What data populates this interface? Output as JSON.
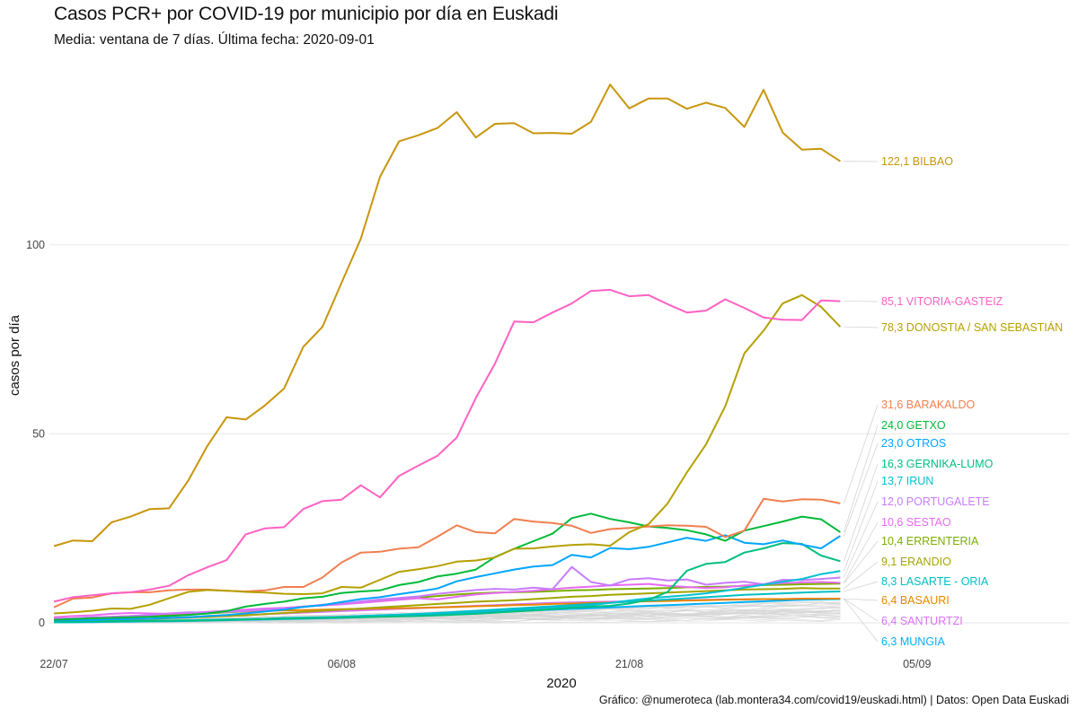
{
  "chart_data": {
    "type": "line",
    "title": "Casos PCR+ por COVID-19 por municipio por día en Euskadi",
    "subtitle": "Media: ventana de 7 días. Última fecha: 2020-09-01",
    "xlabel": "2020",
    "ylabel": "casos por día",
    "caption": "Gráfico: @numeroteca (lab.montera34.com/covid19/euskadi.html) | Datos: Open Data Euskadi",
    "x_ticks": [
      "22/07",
      "06/08",
      "21/08",
      "05/09"
    ],
    "y_ticks": [
      0,
      50,
      100
    ],
    "ylim": [
      -3,
      146
    ],
    "xlim": [
      0,
      53
    ],
    "grid": "horizontal",
    "legend": "direct labels at right",
    "x": [
      0,
      1,
      2,
      3,
      4,
      5,
      6,
      7,
      8,
      9,
      10,
      11,
      12,
      13,
      14,
      15,
      16,
      17,
      18,
      19,
      20,
      21,
      22,
      23,
      24,
      25,
      26,
      27,
      28,
      29,
      30,
      31,
      32,
      33,
      34,
      35,
      36,
      37,
      38,
      39,
      40,
      41
    ],
    "series": [
      {
        "name": "BILBAO",
        "label": "122,1 BILBAO",
        "color": "#C8960C",
        "values": [
          20.3,
          21.8,
          21.6,
          26.6,
          28.1,
          30.1,
          30.3,
          37.6,
          46.8,
          54.4,
          53.8,
          57.5,
          62,
          73,
          78.3,
          90,
          101.6,
          118,
          127.4,
          129,
          130.9,
          135.1,
          128.4,
          132,
          132.2,
          129.5,
          129.6,
          129.4,
          132.5,
          142.4,
          136.1,
          138.7,
          138.7,
          136,
          137.6,
          136.2,
          131.2,
          141,
          129.7,
          125.2,
          125.4,
          122.1
        ]
      },
      {
        "name": "VITORIA-GASTEIZ",
        "label": "85,1 VITORIA-GASTEIZ",
        "color": "#FF61C3",
        "values": [
          5.6,
          6.8,
          7.3,
          7.8,
          8.1,
          8.8,
          9.8,
          12.6,
          14.7,
          16.6,
          23.4,
          25,
          25.3,
          30.1,
          32.2,
          32.6,
          36.4,
          33.2,
          38.9,
          41.6,
          44.2,
          49,
          59.5,
          68.6,
          79.7,
          79.5,
          82.1,
          84.5,
          87.8,
          88.1,
          86.4,
          86.7,
          84.3,
          82.1,
          82.6,
          85.6,
          83.3,
          80.8,
          80.2,
          80.1,
          85.3,
          85.1
        ]
      },
      {
        "name": "DONOSTIA / SAN SEBASTIÁN",
        "label": "78,3 DONOSTIA / SAN SEBASTIÁN",
        "color": "#B5A000",
        "values": [
          2.5,
          2.8,
          3.2,
          3.8,
          3.7,
          4.8,
          6.5,
          8.2,
          8.7,
          8.5,
          8.2,
          8,
          7.7,
          7.6,
          7.8,
          9.5,
          9.3,
          11.4,
          13.5,
          14.2,
          15,
          16.2,
          16.5,
          17.3,
          19.6,
          19.7,
          20.2,
          20.6,
          20.8,
          20.4,
          24,
          26.1,
          31.6,
          39.8,
          47.2,
          57.3,
          71.3,
          77.3,
          84.5,
          86.7,
          83.6,
          78.3
        ]
      },
      {
        "name": "BARAKALDO",
        "label": "31,6 BARAKALDO",
        "color": "#F07F4F",
        "values": [
          4.1,
          6.4,
          6.7,
          7.8,
          8.1,
          8.1,
          8.6,
          8.8,
          8.8,
          8.5,
          8.3,
          8.6,
          9.5,
          9.5,
          12,
          16,
          18.6,
          18.8,
          19.6,
          20,
          22.8,
          25.8,
          24,
          23.7,
          27.5,
          26.8,
          26.4,
          25.7,
          23.8,
          24.8,
          25.1,
          25.5,
          25.8,
          25.7,
          25.4,
          22.7,
          24.4,
          32.8,
          32.1,
          32.7,
          32.6,
          31.6
        ]
      },
      {
        "name": "GETXO",
        "label": "24,0 GETXO",
        "color": "#00BA38",
        "values": [
          0.8,
          1,
          1.2,
          1.3,
          1.5,
          1.6,
          1.8,
          2.1,
          2.5,
          3.1,
          4.3,
          5,
          5.6,
          6.5,
          6.9,
          7.9,
          8.3,
          8.6,
          10,
          10.8,
          12.3,
          13,
          14.1,
          17.4,
          19.6,
          21.6,
          23.6,
          27.7,
          28.9,
          27.5,
          26.6,
          25.5,
          25.1,
          24.5,
          23.4,
          21.7,
          24.4,
          25.6,
          26.8,
          28.1,
          27.4,
          24
        ]
      },
      {
        "name": "OTROS",
        "label": "23,0 OTROS",
        "color": "#00A5FF",
        "values": [
          0.6,
          0.7,
          0.8,
          0.9,
          1,
          1.1,
          1.3,
          1.5,
          1.8,
          2.1,
          2.5,
          3,
          3.5,
          4.2,
          4.7,
          5.5,
          6.3,
          6.8,
          7.6,
          8.3,
          9.1,
          11,
          12.1,
          13.1,
          14.1,
          14.9,
          15.3,
          18,
          17.3,
          19.8,
          19.5,
          20.1,
          21.3,
          22.5,
          21.7,
          23.2,
          21.2,
          20.8,
          21.8,
          20.7,
          19.7,
          23
        ]
      },
      {
        "name": "GERNIKA-LUMO",
        "label": "16,3 GERNIKA-LUMO",
        "color": "#00BF7D",
        "values": [
          0.3,
          0.3,
          0.4,
          0.4,
          0.5,
          0.5,
          0.6,
          0.6,
          0.7,
          0.8,
          0.9,
          1,
          1.1,
          1.2,
          1.3,
          1.4,
          1.5,
          1.6,
          1.7,
          1.8,
          2,
          2.2,
          2.4,
          2.7,
          3,
          3.3,
          3.6,
          4,
          4.3,
          4.5,
          5.1,
          6.1,
          8.2,
          13.8,
          15.6,
          16.1,
          18.6,
          19.7,
          21.1,
          20.9,
          17.8,
          16.3
        ]
      },
      {
        "name": "IRUN",
        "label": "13,7 IRUN",
        "color": "#00C1D4",
        "values": [
          0.2,
          0.2,
          0.3,
          0.3,
          0.4,
          0.5,
          0.6,
          0.7,
          0.8,
          0.9,
          1,
          1.1,
          1.3,
          1.4,
          1.5,
          1.6,
          1.8,
          2,
          2.1,
          2.3,
          2.5,
          2.7,
          2.9,
          3.2,
          3.5,
          3.8,
          4.1,
          4.4,
          4.7,
          5.3,
          5.9,
          6.5,
          6.9,
          7.3,
          7.8,
          8.5,
          9.3,
          10.1,
          10.9,
          11.6,
          12.9,
          13.7
        ]
      },
      {
        "name": "PORTUGALETE",
        "label": "12,0 PORTUGALETE",
        "color": "#C77CFF",
        "values": [
          1,
          1.2,
          1.5,
          1.6,
          1.8,
          2.1,
          2.5,
          2.8,
          2.7,
          2.9,
          3.1,
          3.5,
          3.8,
          4.2,
          4.8,
          5,
          5.7,
          6.2,
          6.6,
          7,
          7.7,
          8.2,
          8.7,
          9,
          8.8,
          9.3,
          8.9,
          14.8,
          10.8,
          9.9,
          11.5,
          11.8,
          11.2,
          11.5,
          10.1,
          10.6,
          10.9,
          10.2,
          11.4,
          11.3,
          11.6,
          12
        ]
      },
      {
        "name": "SESTAO",
        "label": "10,6 SESTAO",
        "color": "#E76BF3",
        "values": [
          1.5,
          1.8,
          2,
          2.4,
          2.6,
          2.5,
          2.4,
          2.6,
          2.9,
          3.2,
          3.5,
          3.8,
          4,
          4.3,
          4.6,
          4.9,
          5.3,
          5.7,
          6.1,
          6.5,
          6.2,
          6.9,
          7.5,
          7.9,
          8.2,
          8.5,
          8.9,
          9.3,
          9.6,
          9.9,
          10.1,
          10.3,
          9.8,
          9.5,
          9.2,
          9.4,
          9.9,
          10.2,
          10.5,
          10.7,
          10.8,
          10.6
        ]
      },
      {
        "name": "ERRENTERIA",
        "label": "10,4 ERRENTERIA",
        "color": "#7CAE00",
        "values": [
          0.9,
          1,
          1.1,
          1.3,
          1.5,
          1.7,
          1.9,
          2.2,
          2.5,
          2.8,
          3.1,
          3.5,
          3.9,
          4.3,
          4.7,
          5.1,
          5.5,
          5.9,
          6.3,
          6.7,
          7.1,
          7.5,
          7.8,
          8,
          8.1,
          8.2,
          8.4,
          8.6,
          8.7,
          8.9,
          9,
          9.1,
          9.2,
          9.4,
          9.5,
          9.6,
          9.8,
          10,
          10.1,
          10.2,
          10.3,
          10.4
        ]
      },
      {
        "name": "ERANDIO",
        "label": "9,1 ERANDIO",
        "color": "#A3A500",
        "values": [
          0.5,
          0.6,
          0.7,
          0.8,
          0.9,
          1,
          1.2,
          1.4,
          1.6,
          1.8,
          2,
          2.3,
          2.6,
          2.9,
          3.2,
          3.5,
          3.8,
          4.1,
          4.4,
          4.7,
          5,
          5.3,
          5.6,
          5.8,
          6,
          6.3,
          6.6,
          6.9,
          7.1,
          7.4,
          7.6,
          7.8,
          8,
          8.2,
          8.4,
          8.6,
          8.8,
          8.9,
          9,
          9.2,
          9.1,
          9.1
        ]
      },
      {
        "name": "LASARTE - ORIA",
        "label": "8,3 LASARTE - ORIA",
        "color": "#00BFC4",
        "values": [
          0.2,
          0.2,
          0.3,
          0.3,
          0.4,
          0.4,
          0.5,
          0.6,
          0.7,
          0.8,
          0.9,
          1,
          1.1,
          1.2,
          1.4,
          1.6,
          1.8,
          2,
          2.2,
          2.4,
          2.6,
          2.9,
          3.2,
          3.5,
          3.8,
          4.1,
          4.4,
          4.7,
          5,
          5.3,
          5.6,
          5.9,
          6.2,
          6.5,
          6.8,
          7.1,
          7.4,
          7.6,
          7.8,
          8,
          8.2,
          8.3
        ]
      },
      {
        "name": "BASAURI",
        "label": "6,4 BASAURI",
        "color": "#E58700",
        "values": [
          1.1,
          1.2,
          1.4,
          1.6,
          1.8,
          2,
          2.2,
          2.4,
          2.6,
          2.8,
          3,
          3.1,
          3.3,
          3.4,
          3.5,
          3.6,
          3.7,
          3.8,
          3.9,
          4,
          4.1,
          4.2,
          4.4,
          4.5,
          4.7,
          4.8,
          5,
          5.1,
          5.3,
          5.4,
          5.6,
          5.7,
          5.8,
          5.9,
          6,
          6.1,
          6.2,
          6.3,
          6.3,
          6.4,
          6.4,
          6.4
        ]
      },
      {
        "name": "SANTURTZI",
        "label": "6,4 SANTURTZI",
        "color": "#DB72FB",
        "values": [
          0.6,
          0.7,
          0.8,
          0.9,
          1,
          1.1,
          1.3,
          1.5,
          1.7,
          1.9,
          2.1,
          2.3,
          2.5,
          2.7,
          2.9,
          3.1,
          3.3,
          3.5,
          3.7,
          3.9,
          4.1,
          4.3,
          4.5,
          4.7,
          4.9,
          5.1,
          5.3,
          5.4,
          5.5,
          5.6,
          5.7,
          5.8,
          5.9,
          6,
          6.1,
          6.2,
          6.2,
          6.3,
          6.3,
          6.4,
          6.4,
          6.4
        ]
      },
      {
        "name": "MUNGIA",
        "label": "6,3 MUNGIA",
        "color": "#00B0F6",
        "values": [
          0.2,
          0.2,
          0.2,
          0.3,
          0.3,
          0.4,
          0.4,
          0.5,
          0.6,
          0.7,
          0.8,
          0.9,
          1,
          1.1,
          1.2,
          1.3,
          1.5,
          1.7,
          1.9,
          2.1,
          2.3,
          2.5,
          2.7,
          2.9,
          3.1,
          3.3,
          3.5,
          3.7,
          3.9,
          4.1,
          4.3,
          4.5,
          4.7,
          4.9,
          5.1,
          5.3,
          5.5,
          5.7,
          5.9,
          6.1,
          6.2,
          6.3
        ]
      }
    ]
  }
}
